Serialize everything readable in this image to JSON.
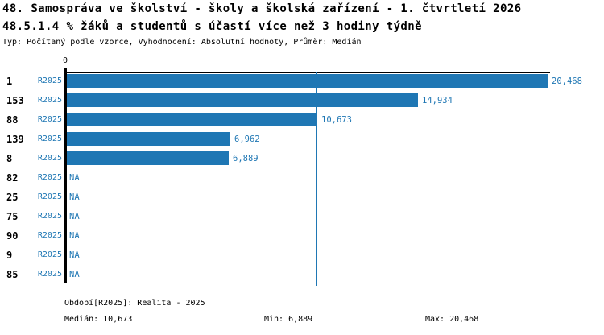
{
  "header": {
    "title": "48. Samospráva ve školství - školy a školská zařízení - 1. čtvrtletí 2026",
    "subtitle": "48.5.1.4 % žáků a studentů s účastí více než 3 hodiny týdně",
    "meta": "Typ: Počítaný podle vzorce, Vyhodnocení: Absolutní hodnoty, Průměr: Medián"
  },
  "chart_data": {
    "type": "bar",
    "orientation": "horizontal",
    "title": "48.5.1.4 % žáků a studentů s účastí více než 3 hodiny týdně",
    "categories": [
      "1",
      "153",
      "88",
      "139",
      "8",
      "82",
      "25",
      "75",
      "90",
      "9",
      "85"
    ],
    "period_label": "R2025",
    "series": [
      {
        "name": "R2025",
        "values": [
          20468,
          14934,
          10673,
          6962,
          6889,
          null,
          null,
          null,
          null,
          null,
          null
        ],
        "value_labels": [
          "20,468",
          "14,934",
          "10,673",
          "6,962",
          "6,889",
          "NA",
          "NA",
          "NA",
          "NA",
          "NA",
          "NA"
        ]
      }
    ],
    "xlim": [
      0,
      20468
    ],
    "x_zero_label": "0",
    "median": 10673,
    "grid": false,
    "legend": false,
    "bar_color": "#1f77b4",
    "median_line_color": "#1f77b4"
  },
  "footer": {
    "period_line": "Období[R2025]: Realita - 2025",
    "median_label": "Medián: 10,673",
    "min_label": "Min: 6,889",
    "max_label": "Max: 20,468"
  },
  "colors": {
    "accent": "#1f77b4",
    "text": "#000000",
    "background": "#ffffff"
  }
}
